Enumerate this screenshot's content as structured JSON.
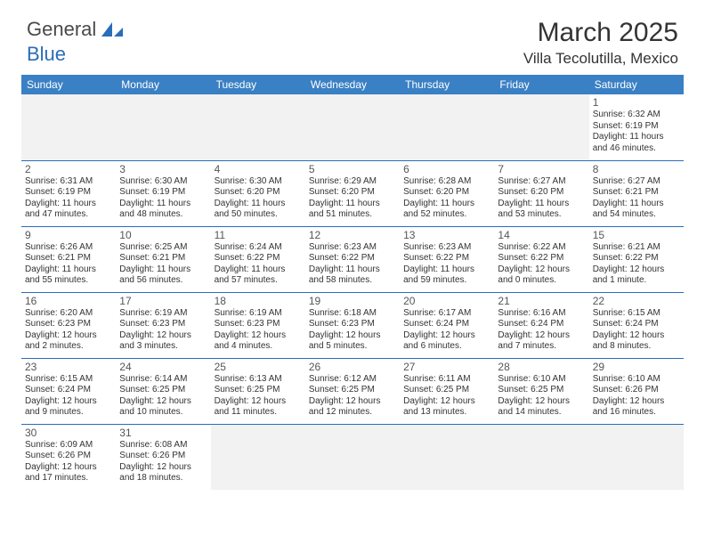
{
  "logo": {
    "text_general": "General",
    "text_blue": "Blue"
  },
  "title": "March 2025",
  "location": "Villa Tecolutilla, Mexico",
  "colors": {
    "header_bg": "#3a80c4",
    "border": "#2a6db8",
    "empty_bg": "#f2f2f2",
    "text": "#333333",
    "page_bg": "#ffffff"
  },
  "typography": {
    "title_fontsize": 30,
    "location_fontsize": 17,
    "header_fontsize": 12,
    "daynum_fontsize": 12,
    "body_fontsize": 10
  },
  "day_headers": [
    "Sunday",
    "Monday",
    "Tuesday",
    "Wednesday",
    "Thursday",
    "Friday",
    "Saturday"
  ],
  "weeks": [
    [
      null,
      null,
      null,
      null,
      null,
      null,
      {
        "n": "1",
        "sr": "Sunrise: 6:32 AM",
        "ss": "Sunset: 6:19 PM",
        "dl": "Daylight: 11 hours and 46 minutes."
      }
    ],
    [
      {
        "n": "2",
        "sr": "Sunrise: 6:31 AM",
        "ss": "Sunset: 6:19 PM",
        "dl": "Daylight: 11 hours and 47 minutes."
      },
      {
        "n": "3",
        "sr": "Sunrise: 6:30 AM",
        "ss": "Sunset: 6:19 PM",
        "dl": "Daylight: 11 hours and 48 minutes."
      },
      {
        "n": "4",
        "sr": "Sunrise: 6:30 AM",
        "ss": "Sunset: 6:20 PM",
        "dl": "Daylight: 11 hours and 50 minutes."
      },
      {
        "n": "5",
        "sr": "Sunrise: 6:29 AM",
        "ss": "Sunset: 6:20 PM",
        "dl": "Daylight: 11 hours and 51 minutes."
      },
      {
        "n": "6",
        "sr": "Sunrise: 6:28 AM",
        "ss": "Sunset: 6:20 PM",
        "dl": "Daylight: 11 hours and 52 minutes."
      },
      {
        "n": "7",
        "sr": "Sunrise: 6:27 AM",
        "ss": "Sunset: 6:20 PM",
        "dl": "Daylight: 11 hours and 53 minutes."
      },
      {
        "n": "8",
        "sr": "Sunrise: 6:27 AM",
        "ss": "Sunset: 6:21 PM",
        "dl": "Daylight: 11 hours and 54 minutes."
      }
    ],
    [
      {
        "n": "9",
        "sr": "Sunrise: 6:26 AM",
        "ss": "Sunset: 6:21 PM",
        "dl": "Daylight: 11 hours and 55 minutes."
      },
      {
        "n": "10",
        "sr": "Sunrise: 6:25 AM",
        "ss": "Sunset: 6:21 PM",
        "dl": "Daylight: 11 hours and 56 minutes."
      },
      {
        "n": "11",
        "sr": "Sunrise: 6:24 AM",
        "ss": "Sunset: 6:22 PM",
        "dl": "Daylight: 11 hours and 57 minutes."
      },
      {
        "n": "12",
        "sr": "Sunrise: 6:23 AM",
        "ss": "Sunset: 6:22 PM",
        "dl": "Daylight: 11 hours and 58 minutes."
      },
      {
        "n": "13",
        "sr": "Sunrise: 6:23 AM",
        "ss": "Sunset: 6:22 PM",
        "dl": "Daylight: 11 hours and 59 minutes."
      },
      {
        "n": "14",
        "sr": "Sunrise: 6:22 AM",
        "ss": "Sunset: 6:22 PM",
        "dl": "Daylight: 12 hours and 0 minutes."
      },
      {
        "n": "15",
        "sr": "Sunrise: 6:21 AM",
        "ss": "Sunset: 6:22 PM",
        "dl": "Daylight: 12 hours and 1 minute."
      }
    ],
    [
      {
        "n": "16",
        "sr": "Sunrise: 6:20 AM",
        "ss": "Sunset: 6:23 PM",
        "dl": "Daylight: 12 hours and 2 minutes."
      },
      {
        "n": "17",
        "sr": "Sunrise: 6:19 AM",
        "ss": "Sunset: 6:23 PM",
        "dl": "Daylight: 12 hours and 3 minutes."
      },
      {
        "n": "18",
        "sr": "Sunrise: 6:19 AM",
        "ss": "Sunset: 6:23 PM",
        "dl": "Daylight: 12 hours and 4 minutes."
      },
      {
        "n": "19",
        "sr": "Sunrise: 6:18 AM",
        "ss": "Sunset: 6:23 PM",
        "dl": "Daylight: 12 hours and 5 minutes."
      },
      {
        "n": "20",
        "sr": "Sunrise: 6:17 AM",
        "ss": "Sunset: 6:24 PM",
        "dl": "Daylight: 12 hours and 6 minutes."
      },
      {
        "n": "21",
        "sr": "Sunrise: 6:16 AM",
        "ss": "Sunset: 6:24 PM",
        "dl": "Daylight: 12 hours and 7 minutes."
      },
      {
        "n": "22",
        "sr": "Sunrise: 6:15 AM",
        "ss": "Sunset: 6:24 PM",
        "dl": "Daylight: 12 hours and 8 minutes."
      }
    ],
    [
      {
        "n": "23",
        "sr": "Sunrise: 6:15 AM",
        "ss": "Sunset: 6:24 PM",
        "dl": "Daylight: 12 hours and 9 minutes."
      },
      {
        "n": "24",
        "sr": "Sunrise: 6:14 AM",
        "ss": "Sunset: 6:25 PM",
        "dl": "Daylight: 12 hours and 10 minutes."
      },
      {
        "n": "25",
        "sr": "Sunrise: 6:13 AM",
        "ss": "Sunset: 6:25 PM",
        "dl": "Daylight: 12 hours and 11 minutes."
      },
      {
        "n": "26",
        "sr": "Sunrise: 6:12 AM",
        "ss": "Sunset: 6:25 PM",
        "dl": "Daylight: 12 hours and 12 minutes."
      },
      {
        "n": "27",
        "sr": "Sunrise: 6:11 AM",
        "ss": "Sunset: 6:25 PM",
        "dl": "Daylight: 12 hours and 13 minutes."
      },
      {
        "n": "28",
        "sr": "Sunrise: 6:10 AM",
        "ss": "Sunset: 6:25 PM",
        "dl": "Daylight: 12 hours and 14 minutes."
      },
      {
        "n": "29",
        "sr": "Sunrise: 6:10 AM",
        "ss": "Sunset: 6:26 PM",
        "dl": "Daylight: 12 hours and 16 minutes."
      }
    ],
    [
      {
        "n": "30",
        "sr": "Sunrise: 6:09 AM",
        "ss": "Sunset: 6:26 PM",
        "dl": "Daylight: 12 hours and 17 minutes."
      },
      {
        "n": "31",
        "sr": "Sunrise: 6:08 AM",
        "ss": "Sunset: 6:26 PM",
        "dl": "Daylight: 12 hours and 18 minutes."
      },
      null,
      null,
      null,
      null,
      null
    ]
  ]
}
